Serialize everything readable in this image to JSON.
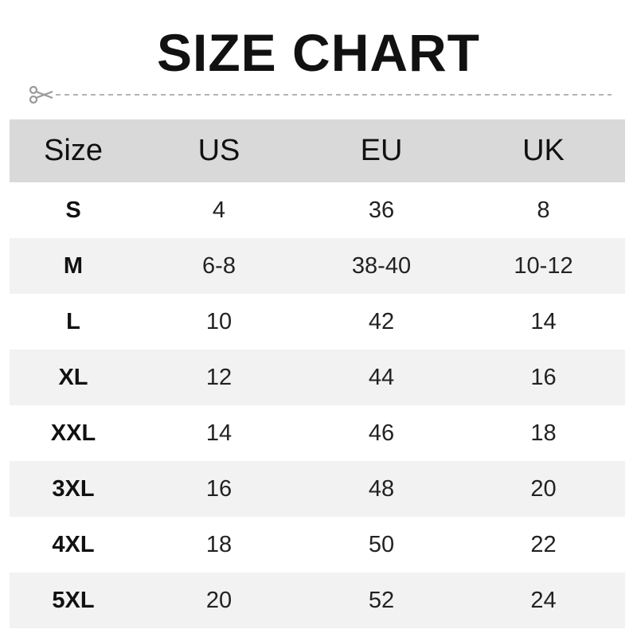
{
  "title": "SIZE CHART",
  "cut_icon": "scissors-icon",
  "colors": {
    "header_bg": "#d9d9d9",
    "alt_row_bg": "#f2f2f2",
    "dash": "#9a9a9a"
  },
  "table": {
    "headers": [
      "Size",
      "US",
      "EU",
      "UK"
    ],
    "rows": [
      [
        "S",
        "4",
        "36",
        "8"
      ],
      [
        "M",
        "6-8",
        "38-40",
        "10-12"
      ],
      [
        "L",
        "10",
        "42",
        "14"
      ],
      [
        "XL",
        "12",
        "44",
        "16"
      ],
      [
        "XXL",
        "14",
        "46",
        "18"
      ],
      [
        "3XL",
        "16",
        "48",
        "20"
      ],
      [
        "4XL",
        "18",
        "50",
        "22"
      ],
      [
        "5XL",
        "20",
        "52",
        "24"
      ]
    ]
  }
}
